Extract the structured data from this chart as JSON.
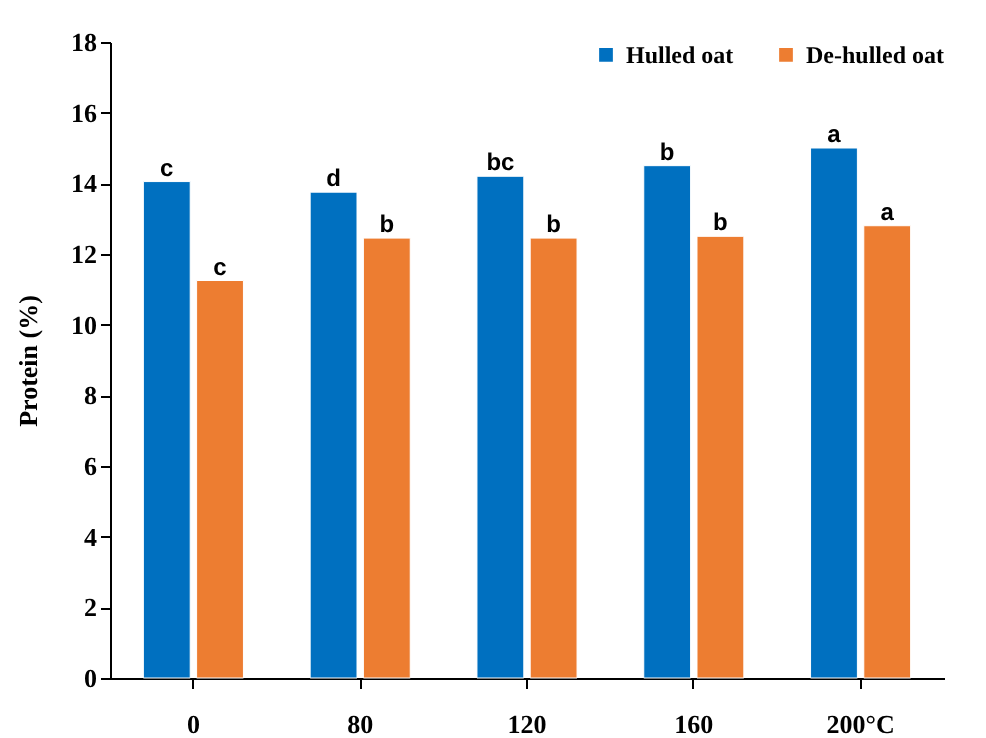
{
  "chart_data": {
    "type": "bar",
    "ylabel": "Protein (%)",
    "categories": [
      "0",
      "80",
      "120",
      "160",
      "200°C"
    ],
    "series": [
      {
        "name": "Hulled oat",
        "color": "#0070c0",
        "values": [
          14.05,
          13.75,
          14.2,
          14.5,
          15.0
        ],
        "value_labels": [
          "c",
          "d",
          "bc",
          "b",
          "a"
        ]
      },
      {
        "name": "De-hulled oat",
        "color": "#ed7d31",
        "values": [
          11.25,
          12.45,
          12.45,
          12.5,
          12.8
        ],
        "value_labels": [
          "c",
          "b",
          "b",
          "b",
          "a"
        ]
      }
    ],
    "ylim": [
      0,
      18
    ],
    "yticks": [
      0,
      2,
      4,
      6,
      8,
      10,
      12,
      14,
      16,
      18
    ],
    "grid": false,
    "legend": "top right"
  }
}
